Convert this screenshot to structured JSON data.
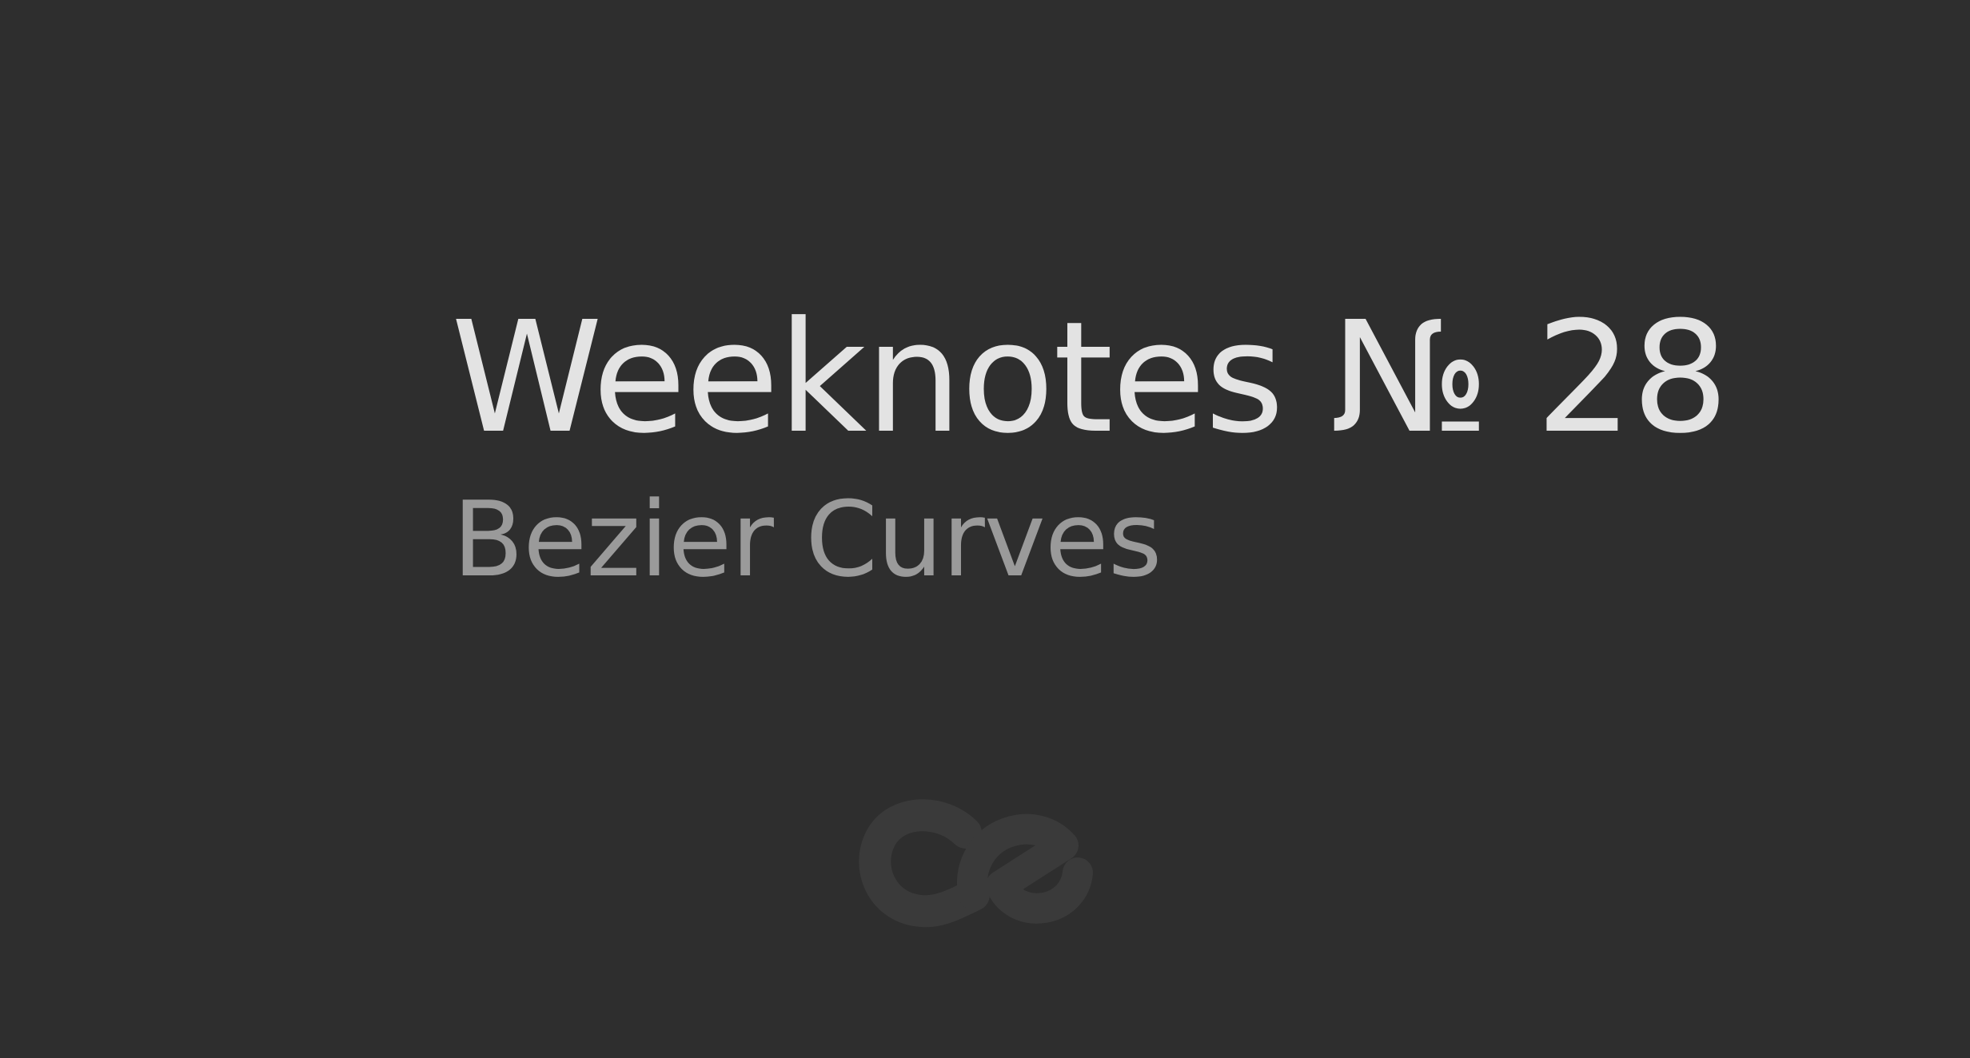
{
  "post": {
    "title": "Weeknotes № 28",
    "subtitle": "Bezier Curves"
  },
  "logo": {
    "icon": "ce-monogram-icon"
  },
  "colors": {
    "background": "#2e2e2e",
    "title": "#e3e3e3",
    "subtitle": "#9a9a9a",
    "logo": "#3a3a3a"
  }
}
